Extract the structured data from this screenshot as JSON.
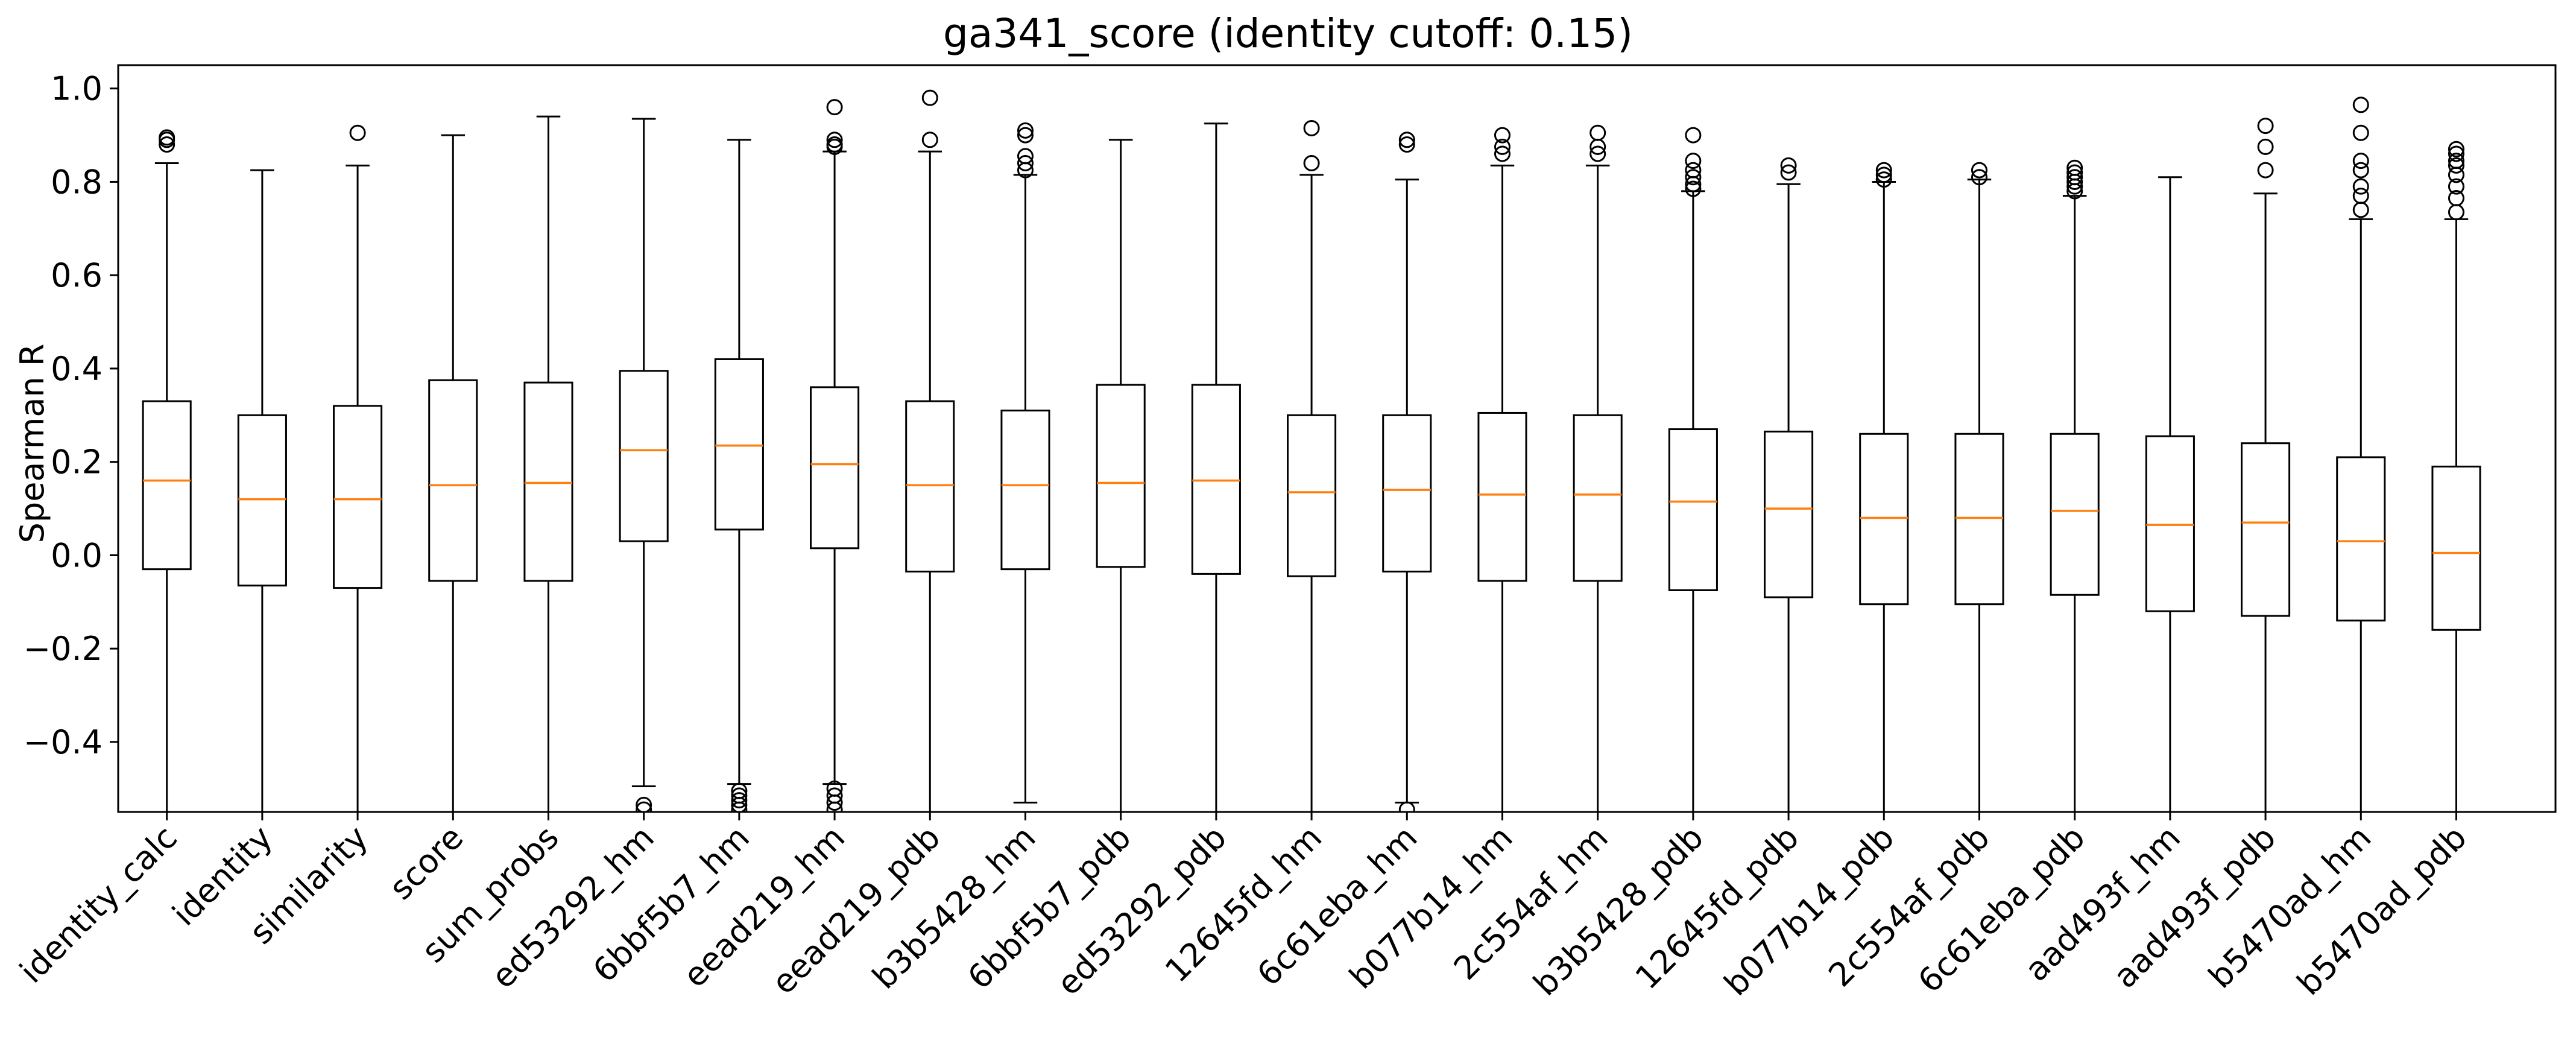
{
  "chart_data": {
    "type": "box",
    "title": "ga341_score (identity cutoff: 0.15)",
    "xlabel": "",
    "ylabel": "Spearman R",
    "ylim": [
      -0.55,
      1.05
    ],
    "yticks": [
      -0.4,
      -0.2,
      0.0,
      0.2,
      0.4,
      0.6,
      0.8,
      1.0
    ],
    "ytick_labels": [
      "−0.4",
      "−0.2",
      "0.0",
      "0.2",
      "0.4",
      "0.6",
      "0.8",
      "1.0"
    ],
    "grid": false,
    "legend": "none",
    "colors": {
      "box": "#000000",
      "median": "#ff7f0e",
      "outlier": "#000000"
    },
    "categories": [
      "identity_calc",
      "identity",
      "similarity",
      "score",
      "sum_probs",
      "ed53292_hm",
      "6bbf5b7_hm",
      "eead219_hm",
      "eead219_pdb",
      "b3b5428_hm",
      "6bbf5b7_pdb",
      "ed53292_pdb",
      "12645fd_hm",
      "6c61eba_hm",
      "b077b14_hm",
      "2c554af_hm",
      "b3b5428_pdb",
      "12645fd_pdb",
      "b077b14_pdb",
      "2c554af_pdb",
      "6c61eba_pdb",
      "aad493f_hm",
      "aad493f_pdb",
      "b5470ad_hm",
      "b5470ad_pdb"
    ],
    "boxes": [
      {
        "q1": -0.03,
        "median": 0.16,
        "q3": 0.33,
        "whisker_low": -0.55,
        "whisker_high": 0.84,
        "outliers": [
          0.88,
          0.89,
          0.895
        ]
      },
      {
        "q1": -0.065,
        "median": 0.12,
        "q3": 0.3,
        "whisker_low": -0.55,
        "whisker_high": 0.825,
        "outliers": []
      },
      {
        "q1": -0.07,
        "median": 0.12,
        "q3": 0.32,
        "whisker_low": -0.55,
        "whisker_high": 0.835,
        "outliers": [
          0.905
        ]
      },
      {
        "q1": -0.055,
        "median": 0.15,
        "q3": 0.375,
        "whisker_low": -0.55,
        "whisker_high": 0.9,
        "outliers": []
      },
      {
        "q1": -0.055,
        "median": 0.155,
        "q3": 0.37,
        "whisker_low": -0.55,
        "whisker_high": 0.94,
        "outliers": []
      },
      {
        "q1": 0.03,
        "median": 0.225,
        "q3": 0.395,
        "whisker_low": -0.495,
        "whisker_high": 0.935,
        "outliers": [
          -0.535,
          -0.545
        ]
      },
      {
        "q1": 0.055,
        "median": 0.235,
        "q3": 0.42,
        "whisker_low": -0.49,
        "whisker_high": 0.89,
        "outliers": [
          -0.505,
          -0.515,
          -0.525,
          -0.535,
          -0.545
        ]
      },
      {
        "q1": 0.015,
        "median": 0.195,
        "q3": 0.36,
        "whisker_low": -0.49,
        "whisker_high": 0.865,
        "outliers": [
          0.875,
          0.88,
          0.89,
          0.96,
          -0.5,
          -0.515,
          -0.53,
          -0.545
        ]
      },
      {
        "q1": -0.035,
        "median": 0.15,
        "q3": 0.33,
        "whisker_low": -0.55,
        "whisker_high": 0.865,
        "outliers": [
          0.89,
          0.98
        ]
      },
      {
        "q1": -0.03,
        "median": 0.15,
        "q3": 0.31,
        "whisker_low": -0.53,
        "whisker_high": 0.815,
        "outliers": [
          0.825,
          0.84,
          0.855,
          0.9,
          0.91
        ]
      },
      {
        "q1": -0.025,
        "median": 0.155,
        "q3": 0.365,
        "whisker_low": -0.55,
        "whisker_high": 0.89,
        "outliers": []
      },
      {
        "q1": -0.04,
        "median": 0.16,
        "q3": 0.365,
        "whisker_low": -0.55,
        "whisker_high": 0.925,
        "outliers": []
      },
      {
        "q1": -0.045,
        "median": 0.135,
        "q3": 0.3,
        "whisker_low": -0.55,
        "whisker_high": 0.815,
        "outliers": [
          0.84,
          0.915
        ]
      },
      {
        "q1": -0.035,
        "median": 0.14,
        "q3": 0.3,
        "whisker_low": -0.53,
        "whisker_high": 0.805,
        "outliers": [
          0.88,
          0.89,
          -0.545
        ]
      },
      {
        "q1": -0.055,
        "median": 0.13,
        "q3": 0.305,
        "whisker_low": -0.55,
        "whisker_high": 0.835,
        "outliers": [
          0.86,
          0.875,
          0.9
        ]
      },
      {
        "q1": -0.055,
        "median": 0.13,
        "q3": 0.3,
        "whisker_low": -0.55,
        "whisker_high": 0.835,
        "outliers": [
          0.86,
          0.875,
          0.905
        ]
      },
      {
        "q1": -0.075,
        "median": 0.115,
        "q3": 0.27,
        "whisker_low": -0.55,
        "whisker_high": 0.78,
        "outliers": [
          0.785,
          0.795,
          0.81,
          0.825,
          0.845,
          0.9
        ]
      },
      {
        "q1": -0.09,
        "median": 0.1,
        "q3": 0.265,
        "whisker_low": -0.55,
        "whisker_high": 0.795,
        "outliers": [
          0.82,
          0.835
        ]
      },
      {
        "q1": -0.105,
        "median": 0.08,
        "q3": 0.26,
        "whisker_low": -0.55,
        "whisker_high": 0.8,
        "outliers": [
          0.805,
          0.815,
          0.825
        ]
      },
      {
        "q1": -0.105,
        "median": 0.08,
        "q3": 0.26,
        "whisker_low": -0.55,
        "whisker_high": 0.805,
        "outliers": [
          0.81,
          0.825
        ]
      },
      {
        "q1": -0.085,
        "median": 0.095,
        "q3": 0.26,
        "whisker_low": -0.55,
        "whisker_high": 0.77,
        "outliers": [
          0.78,
          0.79,
          0.8,
          0.81,
          0.82,
          0.83
        ]
      },
      {
        "q1": -0.12,
        "median": 0.065,
        "q3": 0.255,
        "whisker_low": -0.55,
        "whisker_high": 0.81,
        "outliers": []
      },
      {
        "q1": -0.13,
        "median": 0.07,
        "q3": 0.24,
        "whisker_low": -0.55,
        "whisker_high": 0.775,
        "outliers": [
          0.825,
          0.875,
          0.92
        ]
      },
      {
        "q1": -0.14,
        "median": 0.03,
        "q3": 0.21,
        "whisker_low": -0.55,
        "whisker_high": 0.72,
        "outliers": [
          0.74,
          0.77,
          0.79,
          0.825,
          0.845,
          0.905,
          0.965
        ]
      },
      {
        "q1": -0.16,
        "median": 0.005,
        "q3": 0.19,
        "whisker_low": -0.55,
        "whisker_high": 0.72,
        "outliers": [
          0.735,
          0.765,
          0.79,
          0.815,
          0.835,
          0.845,
          0.86,
          0.87
        ]
      }
    ]
  }
}
